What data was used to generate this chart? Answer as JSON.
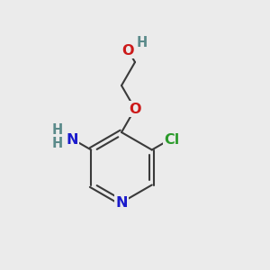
{
  "bg_color": "#ebebeb",
  "bond_color": "#3a3a3a",
  "bond_width": 1.5,
  "atom_colors": {
    "N": "#1a1acc",
    "O": "#cc1a1a",
    "Cl": "#2a9a2a",
    "H": "#5a8a8a",
    "C": "#3a3a3a"
  },
  "font_size": 11.5
}
